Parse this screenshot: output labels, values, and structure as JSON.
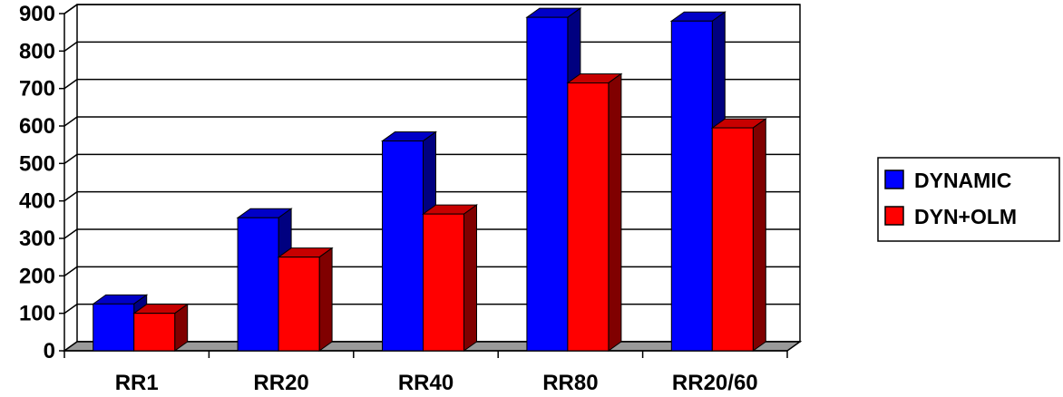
{
  "chart_data": {
    "type": "bar",
    "categories": [
      "RR1",
      "RR20",
      "RR40",
      "RR80",
      "RR20/60"
    ],
    "series": [
      {
        "name": "DYNAMIC",
        "values": [
          125,
          355,
          560,
          890,
          880
        ],
        "color": "#0000ff"
      },
      {
        "name": "DYN+OLM",
        "values": [
          100,
          250,
          365,
          715,
          595
        ],
        "color": "#ff0000"
      }
    ],
    "ylim": [
      0,
      900
    ],
    "yticks": [
      "0",
      "100",
      "200",
      "300",
      "400",
      "500",
      "600",
      "700",
      "800",
      "900"
    ],
    "grid": true,
    "legend_position": "right",
    "title": "",
    "xlabel": "",
    "ylabel": ""
  }
}
